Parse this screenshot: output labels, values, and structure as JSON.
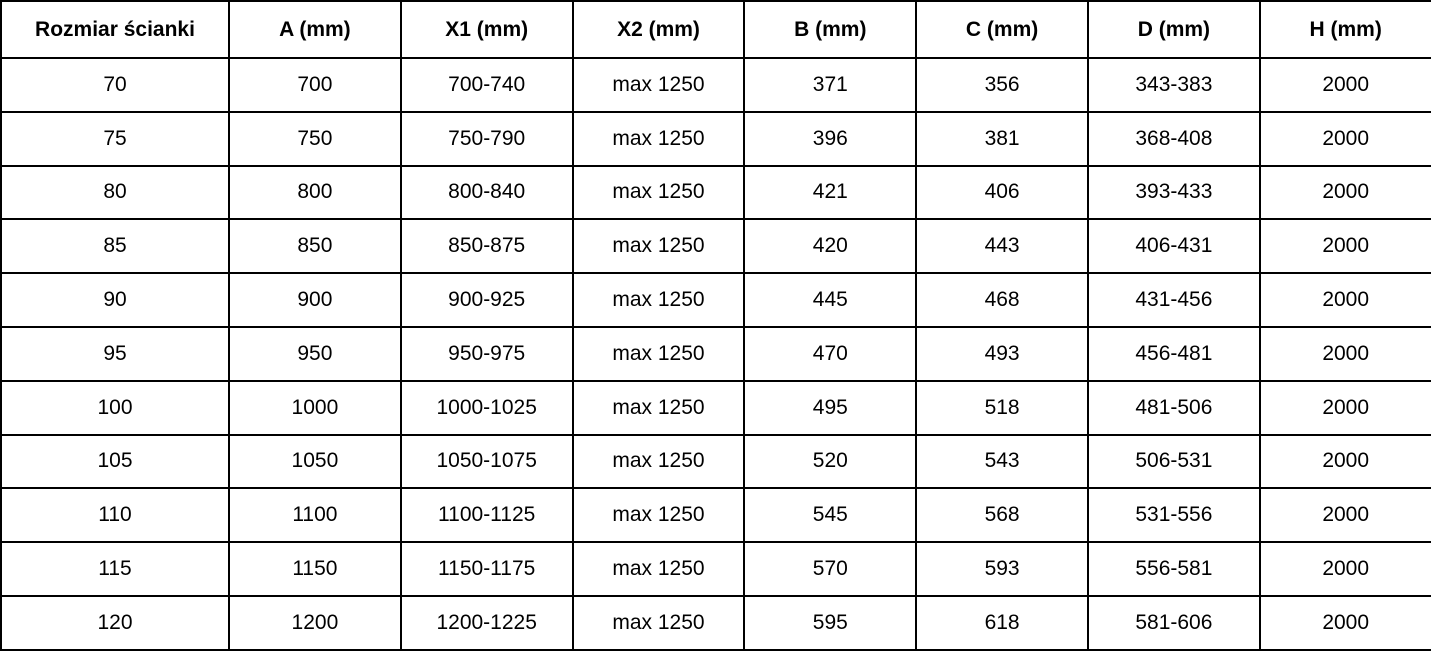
{
  "colors": {
    "border": "#000000",
    "text": "#000000",
    "background": "#ffffff"
  },
  "chart_data": {
    "type": "table",
    "title": "",
    "columns": [
      "Rozmiar ścianki",
      "A (mm)",
      "X1 (mm)",
      "X2 (mm)",
      "B (mm)",
      "C (mm)",
      "D (mm)",
      "H (mm)"
    ],
    "rows": [
      [
        "70",
        "700",
        "700-740",
        "max 1250",
        "371",
        "356",
        "343-383",
        "2000"
      ],
      [
        "75",
        "750",
        "750-790",
        "max 1250",
        "396",
        "381",
        "368-408",
        "2000"
      ],
      [
        "80",
        "800",
        "800-840",
        "max 1250",
        "421",
        "406",
        "393-433",
        "2000"
      ],
      [
        "85",
        "850",
        "850-875",
        "max 1250",
        "420",
        "443",
        "406-431",
        "2000"
      ],
      [
        "90",
        "900",
        "900-925",
        "max 1250",
        "445",
        "468",
        "431-456",
        "2000"
      ],
      [
        "95",
        "950",
        "950-975",
        "max 1250",
        "470",
        "493",
        "456-481",
        "2000"
      ],
      [
        "100",
        "1000",
        "1000-1025",
        "max 1250",
        "495",
        "518",
        "481-506",
        "2000"
      ],
      [
        "105",
        "1050",
        "1050-1075",
        "max 1250",
        "520",
        "543",
        "506-531",
        "2000"
      ],
      [
        "110",
        "1100",
        "1100-1125",
        "max 1250",
        "545",
        "568",
        "531-556",
        "2000"
      ],
      [
        "115",
        "1150",
        "1150-1175",
        "max 1250",
        "570",
        "593",
        "556-581",
        "2000"
      ],
      [
        "120",
        "1200",
        "1200-1225",
        "max 1250",
        "595",
        "618",
        "581-606",
        "2000"
      ]
    ]
  }
}
